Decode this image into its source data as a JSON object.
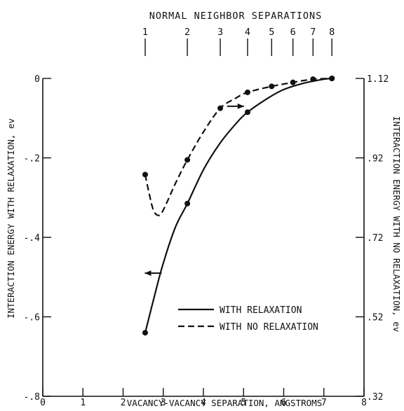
{
  "chart_data": {
    "type": "line",
    "title": "",
    "xlabel": "VACANCY-VACANCY SEPARATION, ANGSTROMS",
    "ylabel_left": "INTERACTION ENERGY WITH RELAXATION, ev",
    "ylabel_right": "INTERACTION ENERGY WITH NO RELAXATION, ev",
    "top_axis_label": "NORMAL NEIGHBOR SEPARATIONS",
    "xlim": [
      0,
      8
    ],
    "ylim_left": [
      -0.8,
      0
    ],
    "ylim_right": [
      0.32,
      1.12
    ],
    "x_ticks": [
      0,
      1,
      2,
      3,
      4,
      5,
      6,
      7,
      8
    ],
    "x_tick_labels": [
      "0",
      "1",
      "2",
      "3",
      "4",
      "5",
      "6",
      "7",
      "8"
    ],
    "y_left_ticks": [
      0,
      -0.2,
      -0.4,
      -0.6,
      -0.8
    ],
    "y_left_tick_labels": [
      "0",
      "-.2",
      "-.4",
      "-.6",
      "-.8"
    ],
    "y_right_ticks": [
      1.12,
      0.92,
      0.72,
      0.52,
      0.32
    ],
    "y_right_tick_labels": [
      "1.12",
      ".92",
      ".72",
      ".52",
      ".32"
    ],
    "top_ticks": [
      {
        "label": "1",
        "x": 2.55
      },
      {
        "label": "2",
        "x": 3.6
      },
      {
        "label": "3",
        "x": 4.42
      },
      {
        "label": "4",
        "x": 5.1
      },
      {
        "label": "5",
        "x": 5.7
      },
      {
        "label": "6",
        "x": 6.23
      },
      {
        "label": "7",
        "x": 6.73
      },
      {
        "label": "8",
        "x": 7.2
      }
    ],
    "legend_position": "lower-right",
    "grid": false,
    "series": [
      {
        "name": "WITH RELAXATION",
        "style": "solid",
        "axis": "left",
        "points": [
          [
            2.55,
            -0.64
          ],
          [
            3.6,
            -0.315
          ],
          [
            5.1,
            -0.085
          ],
          [
            7.2,
            0.0
          ]
        ],
        "curve": [
          [
            2.55,
            -0.64
          ],
          [
            2.8,
            -0.54
          ],
          [
            3.0,
            -0.465
          ],
          [
            3.3,
            -0.375
          ],
          [
            3.6,
            -0.315
          ],
          [
            4.0,
            -0.23
          ],
          [
            4.4,
            -0.165
          ],
          [
            4.8,
            -0.115
          ],
          [
            5.1,
            -0.085
          ],
          [
            5.6,
            -0.05
          ],
          [
            6.0,
            -0.028
          ],
          [
            6.5,
            -0.012
          ],
          [
            7.0,
            -0.002
          ],
          [
            7.2,
            0.0
          ]
        ],
        "arrow": {
          "direction": "left",
          "at": [
            2.75,
            -0.49
          ]
        }
      },
      {
        "name": "WITH NO RELAXATION",
        "style": "dashed",
        "axis": "right",
        "points": [
          [
            2.55,
            0.878
          ],
          [
            3.6,
            0.915
          ],
          [
            4.42,
            1.045
          ],
          [
            5.1,
            1.085
          ],
          [
            5.7,
            1.1
          ],
          [
            6.23,
            1.11
          ],
          [
            6.73,
            1.118
          ],
          [
            7.2,
            1.12
          ]
        ],
        "curve": [
          [
            2.55,
            0.878
          ],
          [
            2.65,
            0.83
          ],
          [
            2.75,
            0.79
          ],
          [
            2.85,
            0.776
          ],
          [
            2.95,
            0.78
          ],
          [
            3.1,
            0.81
          ],
          [
            3.3,
            0.855
          ],
          [
            3.6,
            0.915
          ],
          [
            4.0,
            0.985
          ],
          [
            4.42,
            1.045
          ],
          [
            4.8,
            1.07
          ],
          [
            5.1,
            1.085
          ],
          [
            5.7,
            1.1
          ],
          [
            6.23,
            1.11
          ],
          [
            6.73,
            1.118
          ],
          [
            7.2,
            1.12
          ]
        ],
        "arrow": {
          "direction": "right",
          "at": [
            4.8,
            1.05
          ]
        }
      }
    ]
  }
}
